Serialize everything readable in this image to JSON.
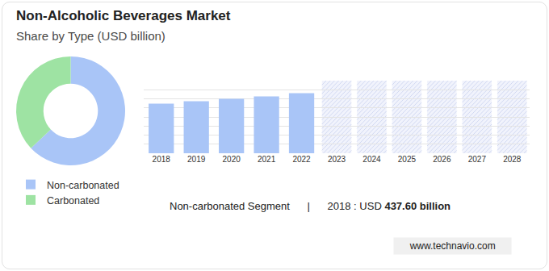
{
  "title": "Non-Alcoholic Beverages Market",
  "subtitle": "Share by Type (USD billion)",
  "chart_data": [
    {
      "type": "pie",
      "categories": [
        "Non-carbonated",
        "Carbonated"
      ],
      "values": [
        63,
        37
      ],
      "colors": [
        "#a9c5f7",
        "#9ee3a3"
      ],
      "legend": "bottom left",
      "data_labels": false
    },
    {
      "type": "bar",
      "categories": [
        "2018",
        "2019",
        "2020",
        "2021",
        "2022",
        "2023",
        "2024",
        "2025",
        "2026",
        "2027",
        "2028"
      ],
      "values": [
        437.6,
        459,
        480,
        501,
        529,
        null,
        null,
        null,
        null,
        null,
        null
      ],
      "color": "#a9c5f7",
      "ylim": [
        0,
        640
      ],
      "yticks": [
        0,
        80,
        160,
        240,
        320,
        400,
        480,
        560,
        640
      ],
      "grid": true,
      "tick_labels": "x"
    }
  ],
  "highlight": {
    "segment": "Non-carbonated Segment",
    "separator": "|",
    "text": "2018 : USD",
    "value": "437.60 billion"
  },
  "source": "www.technavio.com"
}
